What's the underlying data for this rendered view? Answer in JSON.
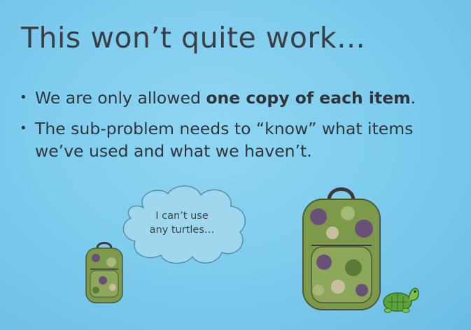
{
  "slide": {
    "title": "This won’t quite work…",
    "bullets": [
      {
        "text_before": "We are only allowed ",
        "text_bold": "one copy of each item",
        "text_after": "."
      },
      {
        "line1": "The sub-problem needs to “know” what items",
        "line2": "we’ve used and what we haven’t."
      }
    ],
    "thought_bubble": {
      "line1": "I can’t use",
      "line2": "any turtles…"
    }
  },
  "colors": {
    "background": "#7ccbee",
    "text": "#2f3439",
    "cloud_fill": "#9fd8ee",
    "cloud_stroke": "#5a8fa8",
    "backpack_green": "#7c9a4a",
    "backpack_purple": "#6a4f78",
    "turtle_green": "#5aa23a"
  },
  "icons": [
    "thought-cloud",
    "small-backpack-icon",
    "large-backpack-icon",
    "turtle-icon"
  ]
}
